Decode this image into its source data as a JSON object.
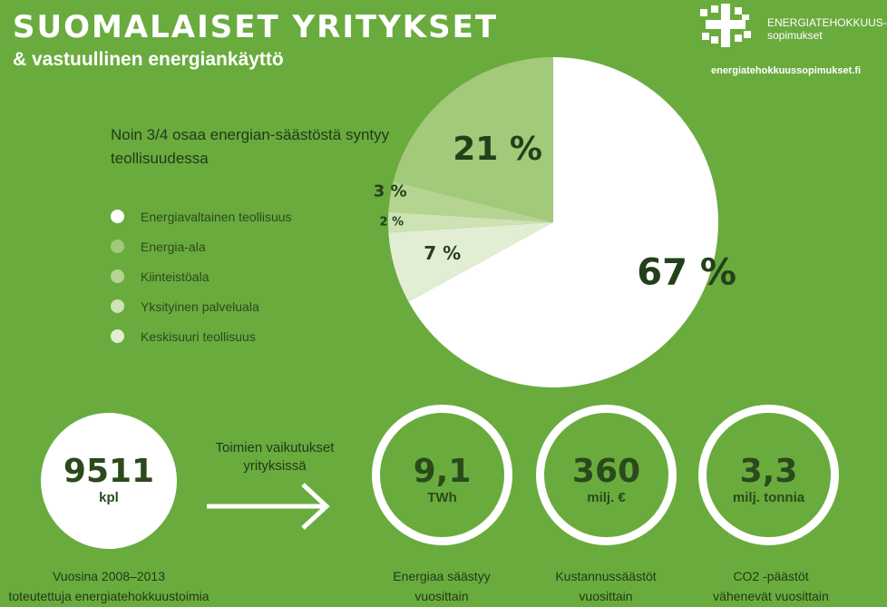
{
  "header": {
    "title": "SUOMALAISET YRITYKSET",
    "subtitle": "& vastuullinen energiankäyttö",
    "logo_line1": "ENERGIATEHOKKUUS-",
    "logo_line2": "sopimukset",
    "website": "energiatehokkuussopimukset.fi"
  },
  "intro": "Noin 3/4 osaa energian-säästöstä syntyy teollisuudessa",
  "legend": [
    {
      "label": "Energiavaltainen teollisuus",
      "color": "#ffffff"
    },
    {
      "label": "Energia-ala",
      "color": "#a3c97a"
    },
    {
      "label": "Kiinteistöala",
      "color": "#b5d491"
    },
    {
      "label": "Yksityinen palveluala",
      "color": "#cde3b4"
    },
    {
      "label": "Keskisuuri teollisuus",
      "color": "#e2eed4"
    }
  ],
  "chart_data": {
    "type": "pie",
    "slices": [
      {
        "name": "Energiavaltainen teollisuus",
        "value": 67,
        "label": "67 %",
        "color": "#ffffff"
      },
      {
        "name": "Keskisuuri teollisuus",
        "value": 7,
        "label": "7 %",
        "color": "#e2eed4"
      },
      {
        "name": "Yksityinen palveluala",
        "value": 2,
        "label": "2 %",
        "color": "#cde3b4"
      },
      {
        "name": "Kiinteistöala",
        "value": 3,
        "label": "3 %",
        "color": "#b5d491"
      },
      {
        "name": "Energia-ala",
        "value": 21,
        "label": "21 %",
        "color": "#a3c97a"
      }
    ]
  },
  "stats": {
    "measures": {
      "value": "9511",
      "unit": "kpl",
      "caption_line1": "Vuosina 2008–2013",
      "caption_line2": "toteutettuja energiatehokkuustoimia"
    },
    "arrow_text": "Toimien vaikutukset yrityksissä",
    "energy": {
      "value": "9,1",
      "unit": "TWh",
      "caption_line1": "Energiaa säästyy",
      "caption_line2": "vuosittain"
    },
    "costs": {
      "value": "360",
      "unit": "milj. €",
      "caption_line1": "Kustannussäästöt",
      "caption_line2": "vuosittain"
    },
    "co2": {
      "value": "3,3",
      "unit": "milj. tonnia",
      "caption_line1": "CO2 -päästöt",
      "caption_line2": "vähenevät vuosittain"
    }
  }
}
